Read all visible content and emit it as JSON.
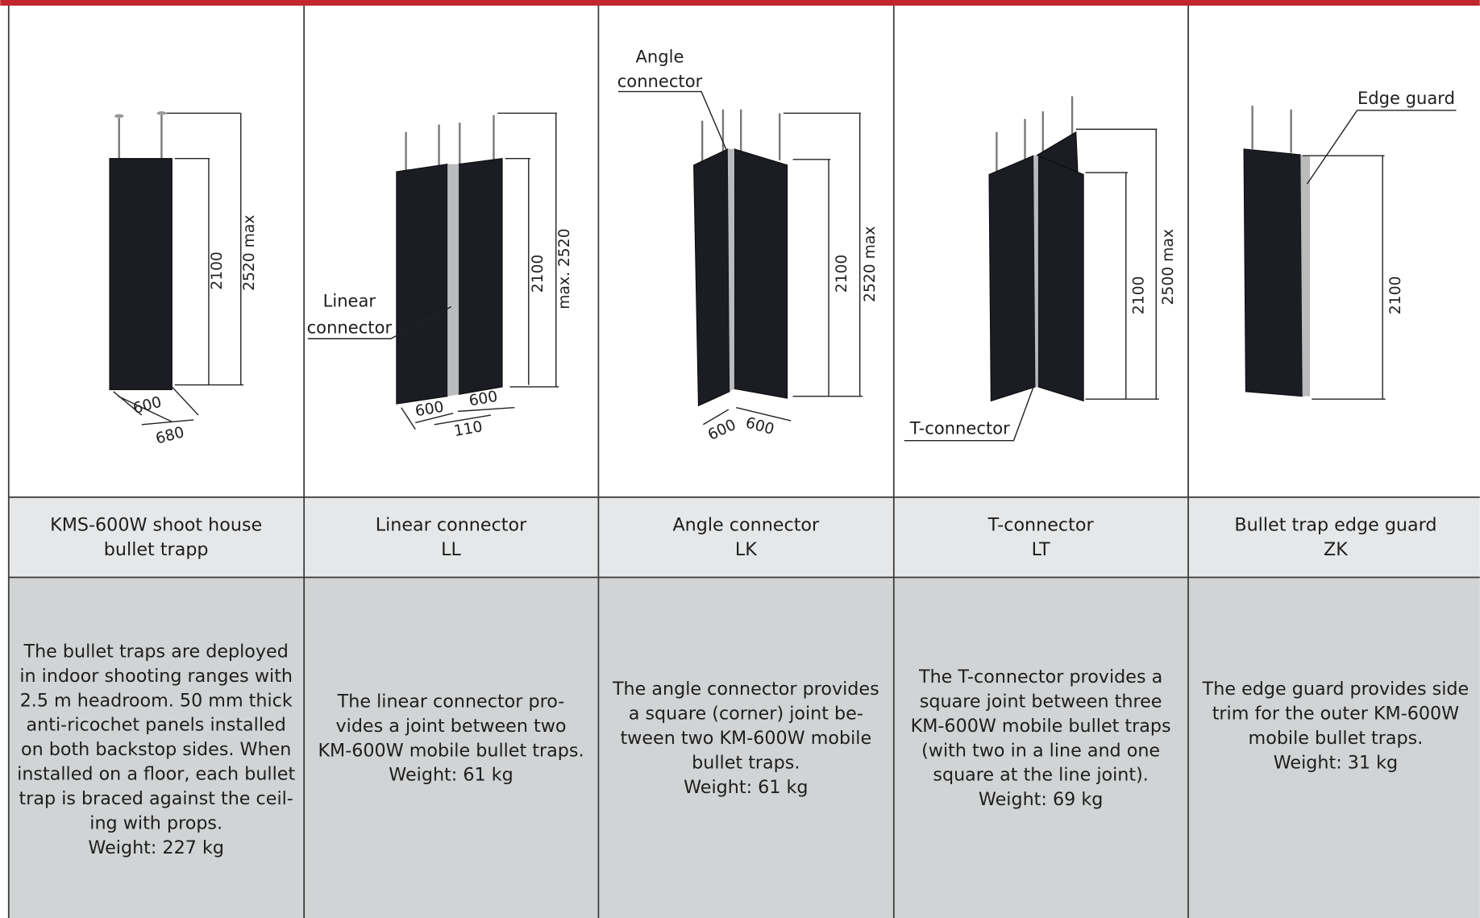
{
  "columns": [
    {
      "dimensions": [
        "2100",
        "2520 max",
        "600",
        "680"
      ],
      "name": [
        "KMS-600W shoot house",
        "bullet trapp"
      ],
      "description": [
        "The bullet traps are deployed",
        "in indoor shooting ranges with",
        "2.5 m headroom. 50 mm thick",
        "anti-ricochet panels installed",
        "on both backstop sides. When",
        "installed on a floor, each bullet",
        "trap is braced against the ceil-",
        "ing with props.",
        "Weight: 227 kg"
      ]
    },
    {
      "callout": [
        "Linear",
        "connector"
      ],
      "dimensions": [
        "2100",
        "max. 2520",
        "600",
        "600",
        "110"
      ],
      "name": [
        "Linear connector",
        "LL"
      ],
      "description": [
        "The linear connector pro-",
        "vides a joint between two",
        "KM-600W mobile bullet traps.",
        "Weight: 61 kg"
      ]
    },
    {
      "callout": [
        "Angle",
        "connector"
      ],
      "dimensions": [
        "2100",
        "2520 max",
        "600",
        "600"
      ],
      "name": [
        "Angle connector",
        "LK"
      ],
      "description": [
        "The angle connector provides",
        "a square (corner) joint be-",
        "tween two KM-600W mobile",
        "bullet traps.",
        "Weight: 61 kg"
      ]
    },
    {
      "callout": [
        "T-connector"
      ],
      "dimensions": [
        "2100",
        "2500 max"
      ],
      "name": [
        "T-connector",
        "LT"
      ],
      "description": [
        "The T-connector provides a",
        "square joint between three",
        "KM-600W mobile bullet traps",
        "(with two in a line and one",
        "square at the line joint).",
        "Weight: 69 kg"
      ]
    },
    {
      "callout": [
        "Edge guard"
      ],
      "dimensions": [
        "2100"
      ],
      "name": [
        "Bullet trap edge guard",
        "ZK"
      ],
      "description": [
        "The edge guard provides side",
        "trim for the outer KM-600W",
        "mobile bullet traps.",
        "Weight: 31 kg"
      ]
    }
  ]
}
